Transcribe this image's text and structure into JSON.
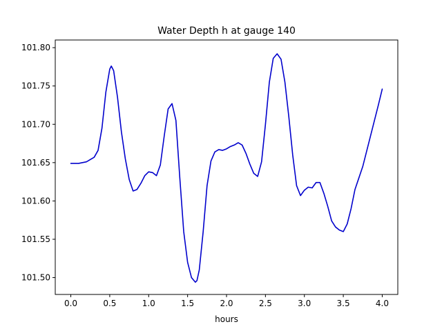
{
  "chart_data": {
    "type": "line",
    "title": "Water Depth h at gauge 140",
    "xlabel": "hours",
    "ylabel": "",
    "xlim": [
      -0.2,
      4.2
    ],
    "ylim": [
      101.478,
      101.81
    ],
    "xticks": [
      0.0,
      0.5,
      1.0,
      1.5,
      2.0,
      2.5,
      3.0,
      3.5,
      4.0
    ],
    "xtick_labels": [
      "0.0",
      "0.5",
      "1.0",
      "1.5",
      "2.0",
      "2.5",
      "3.0",
      "3.5",
      "4.0"
    ],
    "yticks": [
      101.5,
      101.55,
      101.6,
      101.65,
      101.7,
      101.75,
      101.8
    ],
    "ytick_labels": [
      "101.50",
      "101.55",
      "101.60",
      "101.65",
      "101.70",
      "101.75",
      "101.80"
    ],
    "grid": false,
    "series": [
      {
        "color": "#0000cc",
        "x": [
          0.0,
          0.1,
          0.2,
          0.3,
          0.35,
          0.4,
          0.45,
          0.5,
          0.52,
          0.55,
          0.6,
          0.65,
          0.7,
          0.75,
          0.8,
          0.85,
          0.9,
          0.95,
          1.0,
          1.05,
          1.1,
          1.15,
          1.2,
          1.25,
          1.3,
          1.35,
          1.4,
          1.45,
          1.5,
          1.55,
          1.6,
          1.62,
          1.65,
          1.7,
          1.75,
          1.8,
          1.85,
          1.9,
          1.95,
          2.0,
          2.05,
          2.1,
          2.15,
          2.2,
          2.25,
          2.3,
          2.35,
          2.4,
          2.45,
          2.5,
          2.55,
          2.6,
          2.65,
          2.7,
          2.75,
          2.8,
          2.85,
          2.9,
          2.95,
          3.0,
          3.05,
          3.1,
          3.15,
          3.2,
          3.25,
          3.3,
          3.35,
          3.4,
          3.45,
          3.5,
          3.55,
          3.6,
          3.65,
          3.7,
          3.75,
          3.8,
          3.85,
          3.9,
          3.95,
          4.0
        ],
        "y": [
          101.649,
          101.649,
          101.651,
          101.657,
          101.666,
          101.695,
          101.742,
          101.772,
          101.776,
          101.77,
          101.735,
          101.69,
          101.655,
          101.628,
          101.613,
          101.615,
          101.623,
          101.633,
          101.638,
          101.637,
          101.633,
          101.647,
          101.685,
          101.72,
          101.727,
          101.705,
          101.63,
          101.56,
          101.52,
          101.5,
          101.494,
          101.496,
          101.51,
          101.56,
          101.62,
          101.652,
          101.664,
          101.667,
          101.666,
          101.668,
          101.671,
          101.673,
          101.676,
          101.673,
          101.662,
          101.648,
          101.636,
          101.632,
          101.651,
          101.7,
          101.755,
          101.786,
          101.792,
          101.785,
          101.755,
          101.71,
          101.66,
          101.62,
          101.607,
          101.614,
          101.618,
          101.617,
          101.624,
          101.624,
          101.61,
          101.593,
          101.574,
          101.566,
          101.562,
          101.56,
          101.57,
          101.59,
          101.615,
          101.63,
          101.645,
          101.665,
          101.685,
          101.705,
          101.725,
          101.746
        ]
      }
    ]
  }
}
